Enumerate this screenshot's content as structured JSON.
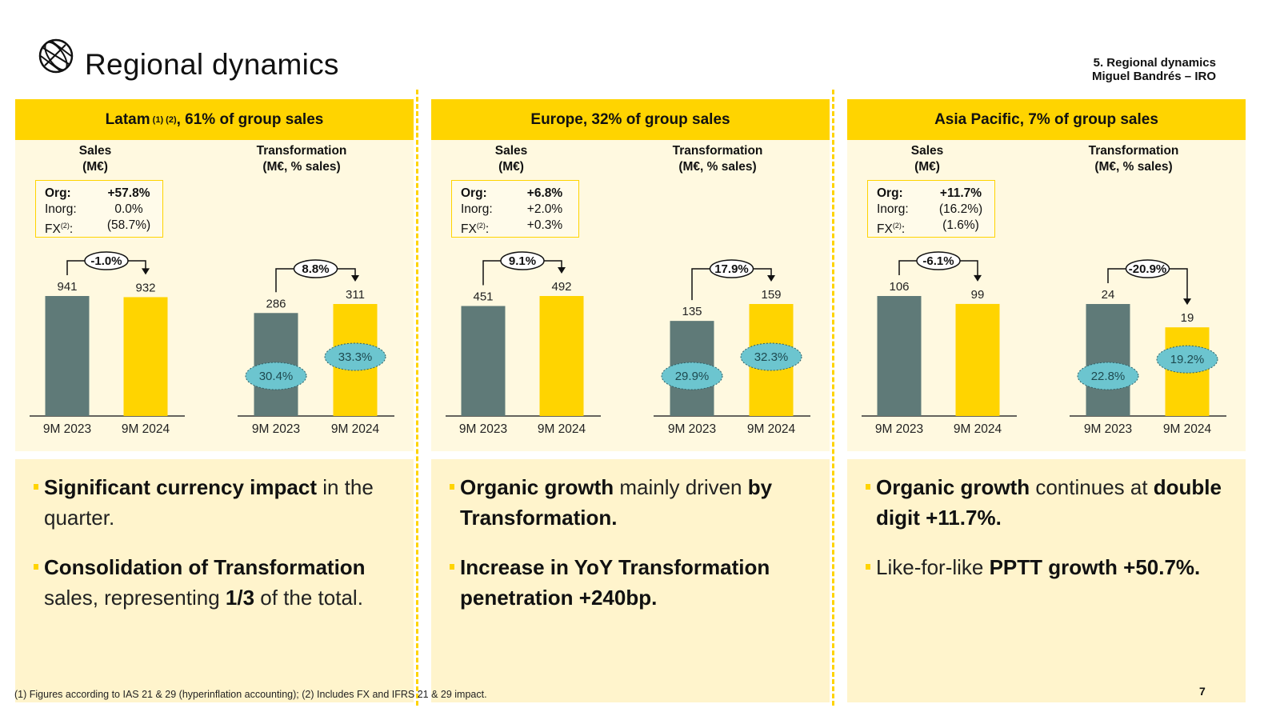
{
  "header": {
    "title": "Regional dynamics",
    "section": "5. Regional dynamics",
    "presenter": "Miguel Bandrés – IRO"
  },
  "panels": [
    {
      "head": {
        "text": "Latam",
        "sup": "(1) (2)",
        "suffix": ", 61% of group sales"
      },
      "sales_title": [
        "Sales",
        "(M€)"
      ],
      "trans_title": [
        "Transformation",
        "(M€, % sales)"
      ],
      "growth": [
        {
          "label": "Org:",
          "sup": "",
          "value": "+57.8%"
        },
        {
          "label": "Inorg:",
          "sup": "",
          "value": "0.0%"
        },
        {
          "label": "FX",
          "sup": "(2)",
          "value": "(58.7%)"
        }
      ],
      "bullets": [
        [
          {
            "t": "Significant currency impact",
            "b": true
          },
          {
            "t": " in the quarter.",
            "b": false
          }
        ],
        [
          {
            "t": "Consolidation of Transformation",
            "b": true
          },
          {
            "t": " sales, representing ",
            "b": false
          },
          {
            "t": "1/3",
            "b": true
          },
          {
            "t": " of the total.",
            "b": false
          }
        ]
      ]
    },
    {
      "head": {
        "text": "Europe, 32% of group sales",
        "sup": "",
        "suffix": ""
      },
      "sales_title": [
        "Sales",
        "(M€)"
      ],
      "trans_title": [
        "Transformation",
        "(M€, % sales)"
      ],
      "growth": [
        {
          "label": "Org:",
          "sup": "",
          "value": "+6.8%"
        },
        {
          "label": "Inorg:",
          "sup": "",
          "value": "+2.0%"
        },
        {
          "label": "FX",
          "sup": "(2)",
          "value": "+0.3%"
        }
      ],
      "bullets": [
        [
          {
            "t": "Organic growth",
            "b": true
          },
          {
            "t": " mainly driven ",
            "b": false
          },
          {
            "t": "by Transformation.",
            "b": true
          }
        ],
        [
          {
            "t": "Increase in YoY Transformation penetration +240bp.",
            "b": true
          }
        ]
      ]
    },
    {
      "head": {
        "text": "Asia Pacific, 7% of group sales",
        "sup": "",
        "suffix": ""
      },
      "sales_title": [
        "Sales",
        "(M€)"
      ],
      "trans_title": [
        "Transformation",
        "(M€, % sales)"
      ],
      "growth": [
        {
          "label": "Org:",
          "sup": "",
          "value": "+11.7%"
        },
        {
          "label": "Inorg:",
          "sup": "",
          "value": "(16.2%)"
        },
        {
          "label": "FX",
          "sup": "(2)",
          "value": "(1.6%)"
        }
      ],
      "bullets": [
        [
          {
            "t": "Organic growth",
            "b": true
          },
          {
            "t": " continues at ",
            "b": false
          },
          {
            "t": "double digit +11.7%.",
            "b": true
          }
        ],
        [
          {
            "t": "Like-for-like ",
            "b": false
          },
          {
            "t": "PPTT growth +50.7%.",
            "b": true
          }
        ]
      ]
    }
  ],
  "chart_data": [
    {
      "type": "bar",
      "region": "Latam",
      "metric": "Sales",
      "categories": [
        "9M 2023",
        "9M 2024"
      ],
      "values": [
        941,
        932
      ],
      "change": "-1.0%"
    },
    {
      "type": "bar",
      "region": "Latam",
      "metric": "Transformation",
      "categories": [
        "9M 2023",
        "9M 2024"
      ],
      "values": [
        286,
        311
      ],
      "pct_sales": [
        "30.4%",
        "33.3%"
      ],
      "change": "8.8%"
    },
    {
      "type": "bar",
      "region": "Europe",
      "metric": "Sales",
      "categories": [
        "9M 2023",
        "9M 2024"
      ],
      "values": [
        451,
        492
      ],
      "change": "9.1%"
    },
    {
      "type": "bar",
      "region": "Europe",
      "metric": "Transformation",
      "categories": [
        "9M 2023",
        "9M 2024"
      ],
      "values": [
        135,
        159
      ],
      "pct_sales": [
        "29.9%",
        "32.3%"
      ],
      "change": "17.9%"
    },
    {
      "type": "bar",
      "region": "Asia Pacific",
      "metric": "Sales",
      "categories": [
        "9M 2023",
        "9M 2024"
      ],
      "values": [
        106,
        99
      ],
      "change": "-6.1%"
    },
    {
      "type": "bar",
      "region": "Asia Pacific",
      "metric": "Transformation",
      "categories": [
        "9M 2023",
        "9M 2024"
      ],
      "values": [
        24,
        19
      ],
      "pct_sales": [
        "22.8%",
        "19.2%"
      ],
      "change": "-20.9%"
    }
  ],
  "colors": {
    "accent": "#ffd400",
    "bar_prior": "#5f7a78",
    "bar_current": "#ffd400",
    "bubble": "#6cc5cf"
  },
  "footnote": "(1) Figures according to IAS 21 & 29 (hyperinflation accounting); (2) Includes  FX and IFRS 21 & 29 impact.",
  "page_number": "7"
}
